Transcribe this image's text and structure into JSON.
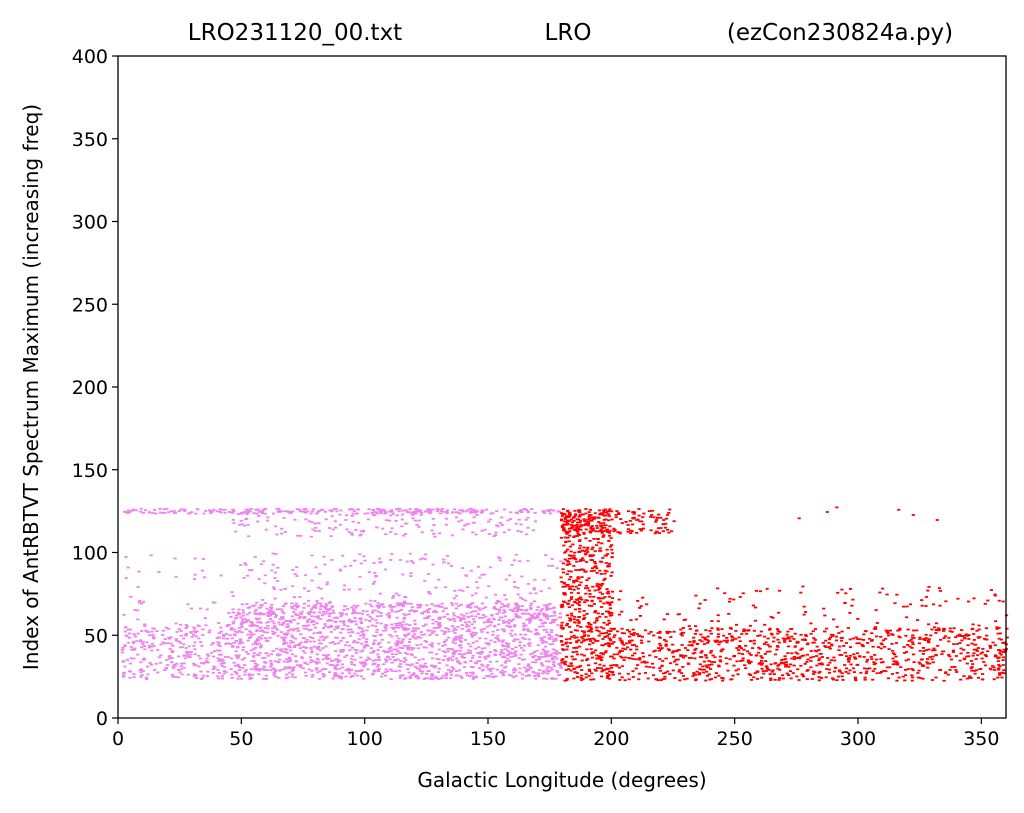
{
  "chart_data": {
    "type": "scatter",
    "title": {
      "left": "LRO231120_00.txt",
      "center": "LRO",
      "right": "(ezCon230824a.py)"
    },
    "xlabel": "Galactic Longitude (degrees)",
    "ylabel": "Index of AntRBTVT Spectrum Maximum (increasing freq)",
    "xlim": [
      0,
      360
    ],
    "ylim": [
      0,
      400
    ],
    "xticks": [
      "0",
      "50",
      "100",
      "150",
      "200",
      "250",
      "300",
      "350"
    ],
    "yticks": [
      "0",
      "50",
      "100",
      "150",
      "200",
      "250",
      "300",
      "350",
      "400"
    ],
    "grid": false,
    "legend": "none",
    "series": [
      {
        "color": "#ee82ee",
        "regions": [
          {
            "x": [
              1,
              179
            ],
            "y": [
              124,
              127
            ],
            "density": 0.9
          },
          {
            "x": [
              1,
              45
            ],
            "y": [
              24,
              58
            ],
            "density": 0.35
          },
          {
            "x": [
              45,
              179
            ],
            "y": [
              24,
              70
            ],
            "density": 0.45
          },
          {
            "x": [
              45,
              179
            ],
            "y": [
              24,
              100
            ],
            "density": 0.06
          },
          {
            "x": [
              45,
              170
            ],
            "y": [
              110,
              124
            ],
            "density": 0.15
          },
          {
            "x": [
              1,
              179
            ],
            "y": [
              60,
              100
            ],
            "density": 0.03
          }
        ]
      },
      {
        "color": "#ff0000",
        "regions": [
          {
            "x": [
              179,
              200
            ],
            "y": [
              23,
              127
            ],
            "density": 0.5
          },
          {
            "x": [
              179,
              225
            ],
            "y": [
              112,
              127
            ],
            "density": 0.4
          },
          {
            "x": [
              200,
              360
            ],
            "y": [
              23,
              55
            ],
            "density": 0.35
          },
          {
            "x": [
              200,
              360
            ],
            "y": [
              55,
              80
            ],
            "density": 0.05
          },
          {
            "x": [
              225,
              360
            ],
            "y": [
              120,
              128
            ],
            "density": 0.01
          }
        ]
      }
    ]
  }
}
